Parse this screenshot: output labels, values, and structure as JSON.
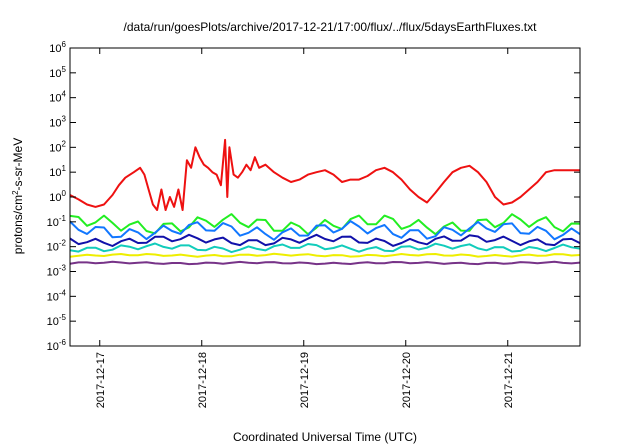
{
  "chart_data": {
    "type": "line",
    "title": "/data/run/goesPlots/archive/2017-12-21/17:00/flux/../flux/5daysEarthFluxes.txt",
    "xlabel": "Coordinated Universal Time (UTC)",
    "ylabel": {
      "base": "protons/cm",
      "sup": "2",
      "rest": "-s-sr-MeV"
    },
    "y_scale": "log",
    "ylim": [
      1e-06,
      1000000.0
    ],
    "y_ticks": [
      {
        "value": 1e-06,
        "base": "10",
        "exp": "-6"
      },
      {
        "value": 1e-05,
        "base": "10",
        "exp": "-5"
      },
      {
        "value": 0.0001,
        "base": "10",
        "exp": "-4"
      },
      {
        "value": 0.001,
        "base": "10",
        "exp": "-3"
      },
      {
        "value": 0.01,
        "base": "10",
        "exp": "-2"
      },
      {
        "value": 0.1,
        "base": "10",
        "exp": "-1"
      },
      {
        "value": 1,
        "base": "10",
        "exp": "0"
      },
      {
        "value": 10.0,
        "base": "10",
        "exp": "1"
      },
      {
        "value": 100.0,
        "base": "10",
        "exp": "2"
      },
      {
        "value": 1000.0,
        "base": "10",
        "exp": "3"
      },
      {
        "value": 10000.0,
        "base": "10",
        "exp": "4"
      },
      {
        "value": 100000.0,
        "base": "10",
        "exp": "5"
      },
      {
        "value": 1000000.0,
        "base": "10",
        "exp": "6"
      }
    ],
    "xlim": [
      "2017-12-16T17:00",
      "2017-12-21T17:00"
    ],
    "x_ticks": [
      "2017-12-17",
      "2017-12-18",
      "2017-12-19",
      "2017-12-20",
      "2017-12-21"
    ],
    "grid": false,
    "legend": "none",
    "series": [
      {
        "color": "#ee1111",
        "x": [
          "2017-12-16T17:00",
          "2017-12-16T19:00",
          "2017-12-16T21:00",
          "2017-12-16T23:00",
          "2017-12-17T01:00",
          "2017-12-17T03:00",
          "2017-12-17T04:30",
          "2017-12-17T06:00",
          "2017-12-17T08:00",
          "2017-12-17T09:30",
          "2017-12-17T10:30",
          "2017-12-17T11:30",
          "2017-12-17T12:30",
          "2017-12-17T13:30",
          "2017-12-17T14:30",
          "2017-12-17T15:30",
          "2017-12-17T16:30",
          "2017-12-17T17:30",
          "2017-12-17T18:30",
          "2017-12-17T19:30",
          "2017-12-17T20:30",
          "2017-12-17T21:30",
          "2017-12-17T22:30",
          "2017-12-17T23:30",
          "2017-12-18T00:30",
          "2017-12-18T01:30",
          "2017-12-18T02:30",
          "2017-12-18T03:30",
          "2017-12-18T04:30",
          "2017-12-18T05:30",
          "2017-12-18T06:00",
          "2017-12-18T06:30",
          "2017-12-18T07:30",
          "2017-12-18T08:30",
          "2017-12-18T09:30",
          "2017-12-18T10:30",
          "2017-12-18T11:30",
          "2017-12-18T12:30",
          "2017-12-18T13:30",
          "2017-12-18T15:00",
          "2017-12-18T17:00",
          "2017-12-18T19:00",
          "2017-12-18T21:00",
          "2017-12-18T23:00",
          "2017-12-19T01:00",
          "2017-12-19T03:00",
          "2017-12-19T05:00",
          "2017-12-19T07:00",
          "2017-12-19T09:00",
          "2017-12-19T11:00",
          "2017-12-19T13:00",
          "2017-12-19T15:00",
          "2017-12-19T17:00",
          "2017-12-19T19:00",
          "2017-12-19T21:00",
          "2017-12-19T23:00",
          "2017-12-20T01:00",
          "2017-12-20T03:00",
          "2017-12-20T05:00",
          "2017-12-20T07:00",
          "2017-12-20T09:00",
          "2017-12-20T11:00",
          "2017-12-20T13:00",
          "2017-12-20T15:00",
          "2017-12-20T17:00",
          "2017-12-20T19:00",
          "2017-12-20T21:00",
          "2017-12-20T23:00",
          "2017-12-21T01:00",
          "2017-12-21T03:00",
          "2017-12-21T05:00",
          "2017-12-21T07:00",
          "2017-12-21T09:00",
          "2017-12-21T11:00",
          "2017-12-21T13:00",
          "2017-12-21T15:00",
          "2017-12-21T17:00"
        ],
        "values": [
          1.2,
          0.8,
          0.5,
          0.4,
          0.5,
          1.2,
          3,
          6,
          10,
          15,
          8,
          2,
          0.5,
          0.3,
          2,
          0.3,
          1,
          0.4,
          2,
          0.3,
          30,
          15,
          100,
          40,
          20,
          15,
          10,
          8,
          3,
          200,
          1,
          100,
          8,
          6,
          10,
          20,
          12,
          40,
          15,
          20,
          10,
          6,
          4,
          5,
          8,
          10,
          12,
          8,
          4,
          5,
          5,
          7,
          12,
          15,
          10,
          5,
          2,
          1,
          0.6,
          1.5,
          4,
          10,
          15,
          18,
          10,
          4,
          1,
          0.5,
          0.6,
          1,
          2,
          4,
          10,
          12,
          12,
          12,
          12
        ]
      },
      {
        "color": "#22ee22",
        "base": 0.08,
        "amp": 2.6,
        "period_h": 2
      },
      {
        "color": "#1177ff",
        "base": 0.045,
        "amp": 2.4,
        "period_h": 2
      },
      {
        "color": "#1111aa",
        "base": 0.018,
        "amp": 1.7,
        "period_h": 2
      },
      {
        "color": "#11ccbb",
        "base": 0.009,
        "amp": 1.5,
        "period_h": 2
      },
      {
        "color": "#eeee00",
        "base": 0.0045,
        "amp": 1.15,
        "period_h": 2
      },
      {
        "color": "#773388",
        "base": 0.0022,
        "amp": 1.12,
        "period_h": 2
      }
    ]
  }
}
